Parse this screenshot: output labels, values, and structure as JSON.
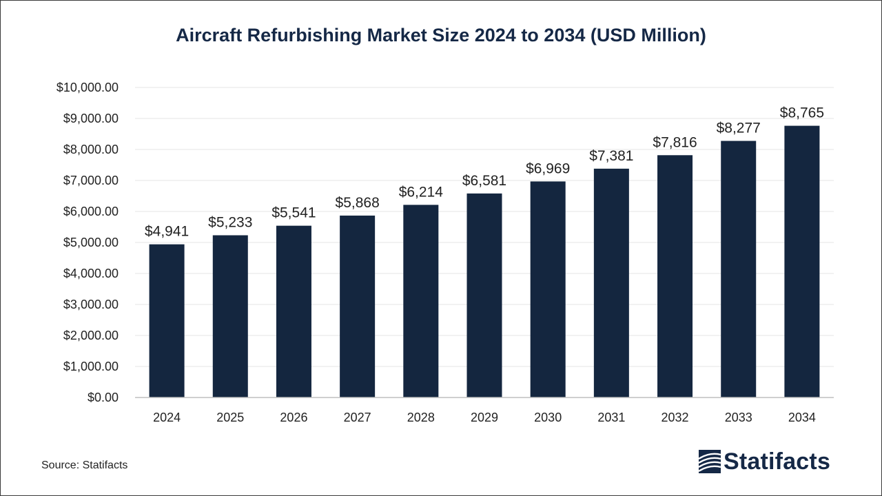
{
  "title": "Aircraft Refurbishing Market Size 2024 to 2034 (USD Million)",
  "source": "Source: Statifacts",
  "brand": "Statifacts",
  "colors": {
    "bar": "#14263f",
    "title": "#152846",
    "grid": "#e6e6e6",
    "axis": "#bfbfbf"
  },
  "chart_data": {
    "type": "bar",
    "title": "Aircraft Refurbishing Market Size 2024 to 2034 (USD Million)",
    "xlabel": "",
    "ylabel": "",
    "categories": [
      "2024",
      "2025",
      "2026",
      "2027",
      "2028",
      "2029",
      "2030",
      "2031",
      "2032",
      "2033",
      "2034"
    ],
    "values": [
      4941,
      5233,
      5541,
      5868,
      6214,
      6581,
      6969,
      7381,
      7816,
      8277,
      8765
    ],
    "data_labels": [
      "$4,941",
      "$5,233",
      "$5,541",
      "$5,868",
      "$6,214",
      "$6,581",
      "$6,969",
      "$7,381",
      "$7,816",
      "$8,277",
      "$8,765"
    ],
    "ylim": [
      0,
      10000
    ],
    "yticks": [
      0,
      1000,
      2000,
      3000,
      4000,
      5000,
      6000,
      7000,
      8000,
      9000,
      10000
    ],
    "ytick_labels": [
      "$0.00",
      "$1,000.00",
      "$2,000.00",
      "$3,000.00",
      "$4,000.00",
      "$5,000.00",
      "$6,000.00",
      "$7,000.00",
      "$8,000.00",
      "$9,000.00",
      "$10,000.00"
    ],
    "grid": true,
    "legend": "none"
  }
}
